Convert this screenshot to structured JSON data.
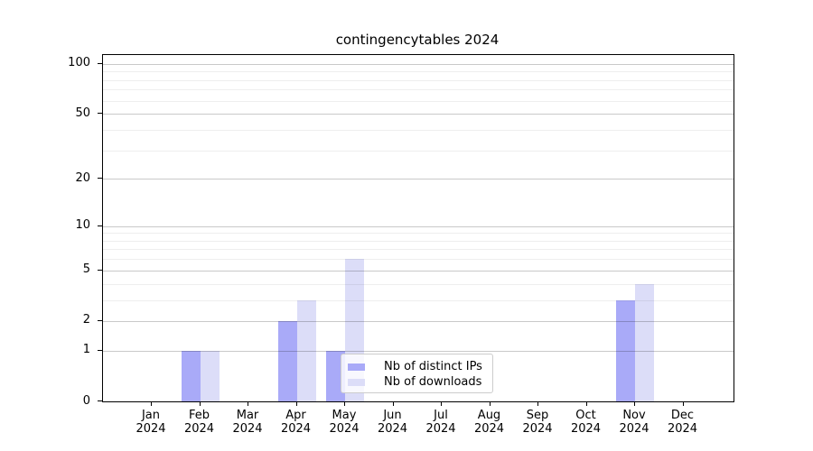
{
  "title": "contingencytables 2024",
  "colors": {
    "distinct_ips": "#a9aaf8",
    "downloads": "#dcddf8",
    "grid_major": "#c9c9c9",
    "grid_minor": "#efefef",
    "spine": "#000000",
    "background": "#ffffff"
  },
  "legend": {
    "items": [
      {
        "label": "Nb of distinct IPs",
        "color_key": "distinct_ips"
      },
      {
        "label": "Nb of downloads",
        "color_key": "downloads"
      }
    ]
  },
  "chart_data": {
    "type": "bar",
    "title": "contingencytables 2024",
    "categories": [
      "Jan",
      "Feb",
      "Mar",
      "Apr",
      "May",
      "Jun",
      "Jul",
      "Aug",
      "Sep",
      "Oct",
      "Nov",
      "Dec"
    ],
    "x_sublabel": "2024",
    "series": [
      {
        "name": "Nb of distinct IPs",
        "color": "#a9aaf8",
        "values": [
          0,
          1,
          0,
          2,
          1,
          0,
          0,
          0,
          0,
          0,
          3,
          0
        ]
      },
      {
        "name": "Nb of downloads",
        "color": "#dcddf8",
        "values": [
          0,
          1,
          0,
          3,
          6,
          0,
          0,
          0,
          0,
          0,
          4,
          0
        ]
      }
    ],
    "xlabel": "",
    "ylabel": "",
    "yscale": "log1p",
    "yticks": [
      0,
      1,
      2,
      5,
      10,
      20,
      50,
      100
    ],
    "minor_yticks": [
      3,
      4,
      6,
      7,
      8,
      9,
      30,
      40,
      60,
      70,
      80,
      90
    ],
    "ylim": [
      0,
      113
    ],
    "grid": true,
    "legend_position": "lower center, inside plot"
  }
}
